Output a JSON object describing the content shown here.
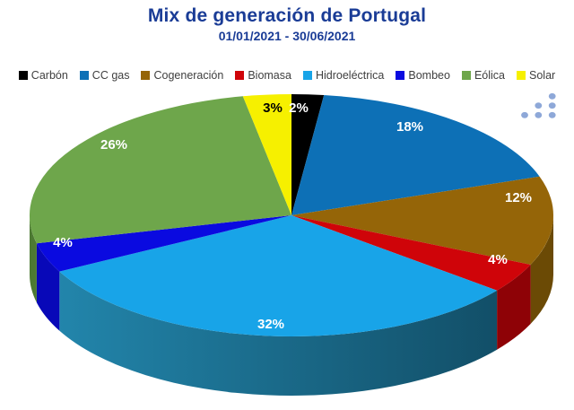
{
  "chart_data": {
    "type": "pie",
    "style": "3d",
    "title": "Mix de generación de Portugal",
    "subtitle": "01/01/2021 - 30/06/2021",
    "unit": "%",
    "legend_position": "top",
    "start_angle_deg": 270,
    "direction": "clockwise",
    "series": [
      {
        "name": "Carbón",
        "value": 2,
        "label": "2%",
        "color": "#000000",
        "side_color": "#000000",
        "label_color": "#ffffff"
      },
      {
        "name": "CC gas",
        "value": 18,
        "label": "18%",
        "color": "#0d70b6",
        "side_color": "#0a5489",
        "label_color": "#ffffff"
      },
      {
        "name": "Cogeneración",
        "value": 12,
        "label": "12%",
        "color": "#956508",
        "side_color": "#6b4a05",
        "label_color": "#ffffff"
      },
      {
        "name": "Biomasa",
        "value": 4,
        "label": "4%",
        "color": "#cf0409",
        "side_color": "#8e0206",
        "label_color": "#ffffff"
      },
      {
        "name": "Hidroeléctrica",
        "value": 32,
        "label": "32%",
        "color": "#18a4e8",
        "side_color": "#17678b",
        "label_color": "#ffffff"
      },
      {
        "name": "Bombeo",
        "value": 4,
        "label": "4%",
        "color": "#0a0ae0",
        "side_color": "#0808b8",
        "label_color": "#ffffff"
      },
      {
        "name": "Eólica",
        "value": 26,
        "label": "26%",
        "color": "#6ea64b",
        "side_color": "#4d7a33",
        "label_color": "#ffffff"
      },
      {
        "name": "Solar",
        "value": 3,
        "label": "3%",
        "color": "#f6f000",
        "side_color": "#b0ac00",
        "label_color": "#000000"
      }
    ]
  },
  "branding": {
    "logo": "dots-logo",
    "dot_color": "#8ea8d8"
  },
  "colors": {
    "title_text": "#1a3c96",
    "legend_text": "#3f3f3f",
    "background": "#ffffff"
  }
}
